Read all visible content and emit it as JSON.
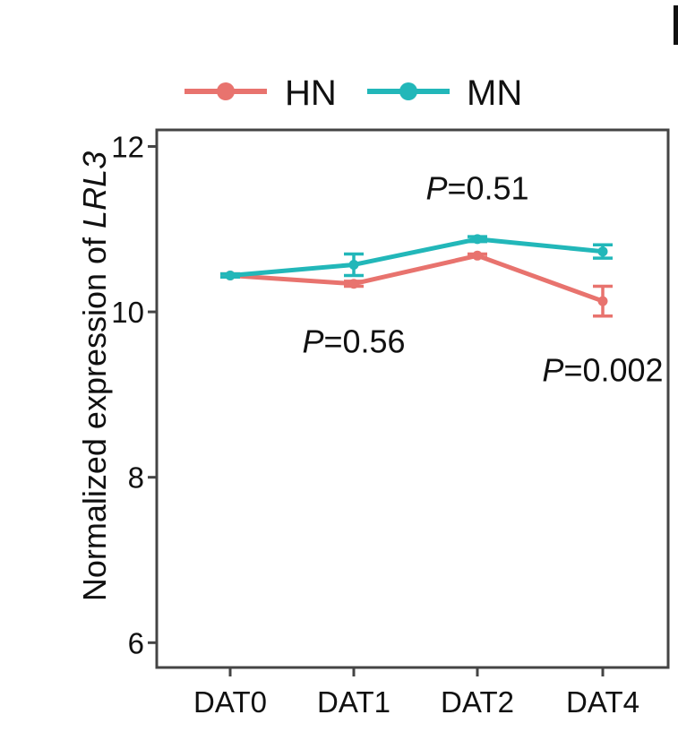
{
  "chart_data": {
    "type": "line",
    "title": "",
    "xlabel": "",
    "ylabel": {
      "prefix": "Normalized expression of ",
      "gene": "LRL3"
    },
    "categories": [
      "DAT0",
      "DAT1",
      "DAT2",
      "DAT4"
    ],
    "ylim": [
      5.7,
      12.2
    ],
    "yticks": [
      6,
      8,
      10,
      12
    ],
    "grid": false,
    "legend": {
      "placement": "top",
      "entries": [
        "HN",
        "MN"
      ]
    },
    "series": [
      {
        "name": "HN",
        "color": "#e8736e",
        "values": [
          10.44,
          10.34,
          10.68,
          10.13
        ],
        "errors": [
          0.02,
          0.03,
          0.02,
          0.18
        ]
      },
      {
        "name": "MN",
        "color": "#22b7b9",
        "values": [
          10.44,
          10.57,
          10.88,
          10.73
        ],
        "errors": [
          0.02,
          0.13,
          0.03,
          0.08
        ]
      }
    ],
    "annotations": [
      {
        "category": "DAT1",
        "italic": "P",
        "rest": "=0.56",
        "y": 9.65
      },
      {
        "category": "DAT2",
        "italic": "P",
        "rest": "=0.51",
        "y": 11.5
      },
      {
        "category": "DAT4",
        "italic": "P",
        "rest": "=0.002",
        "y": 9.3
      }
    ]
  }
}
